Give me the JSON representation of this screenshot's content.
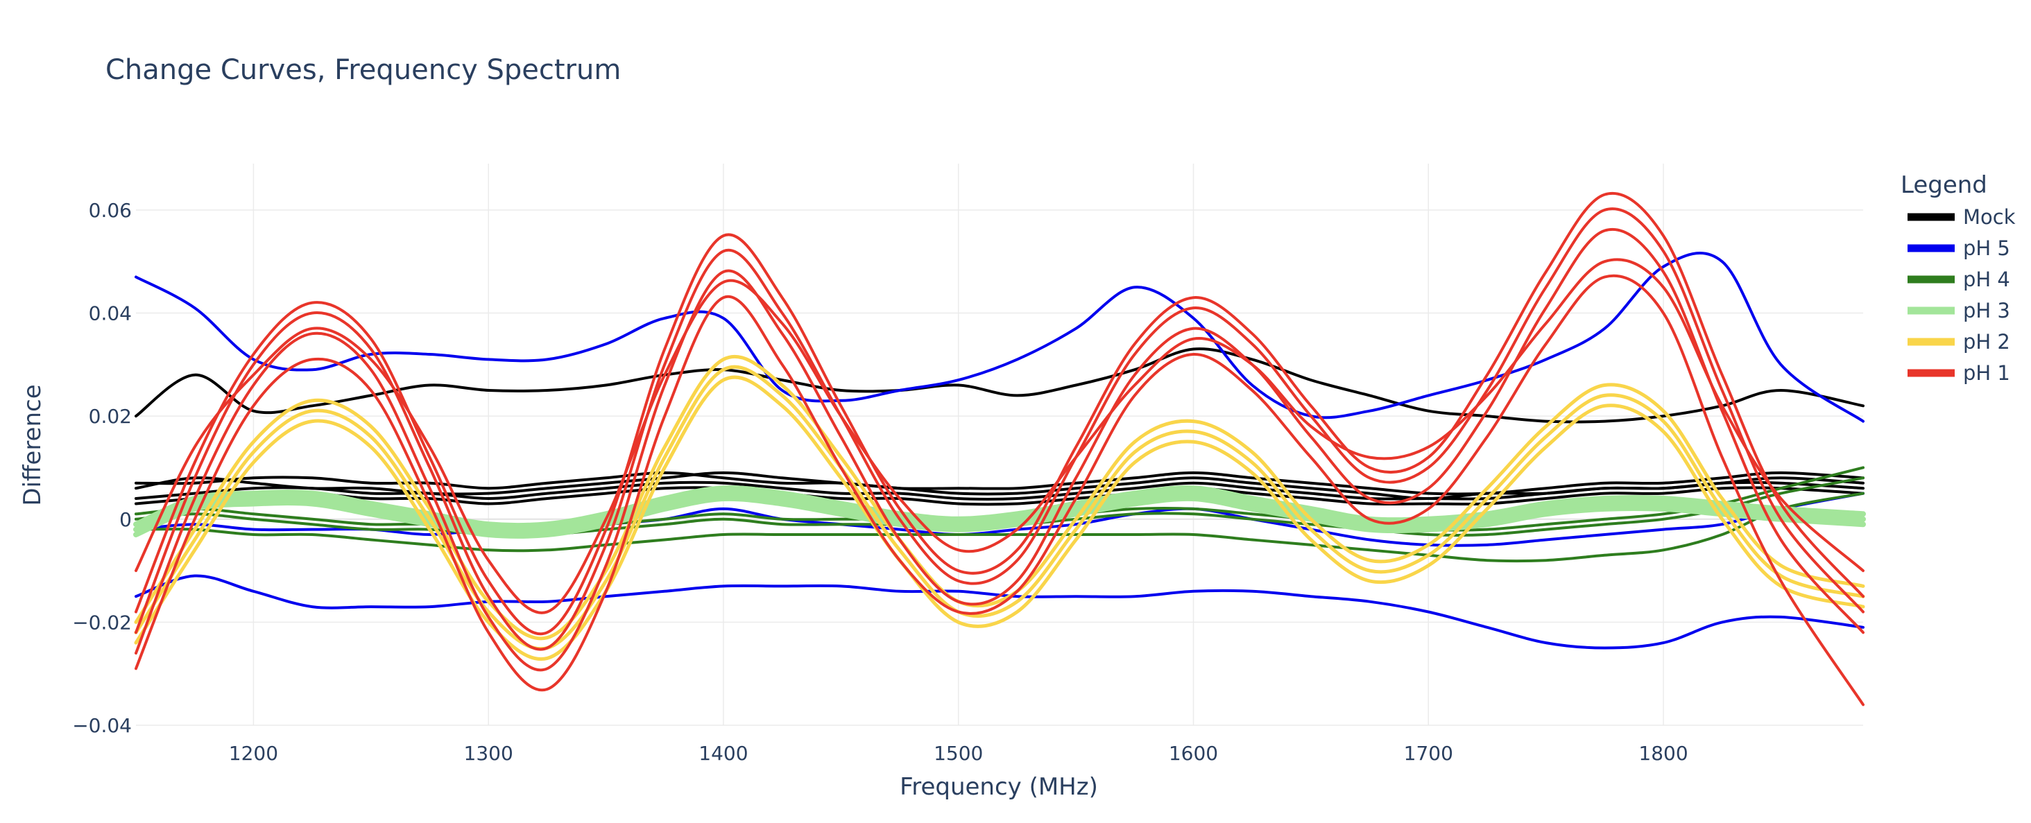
{
  "chart_data": {
    "type": "line",
    "title": "Change Curves, Frequency Spectrum",
    "xlabel": "Frequency (MHz)",
    "ylabel": "Difference",
    "xlim": [
      1150,
      1885
    ],
    "ylim": [
      -0.04,
      0.07
    ],
    "x_ticks": [
      1200,
      1300,
      1400,
      1500,
      1600,
      1700,
      1800
    ],
    "x_tick_labels": [
      "1200",
      "1300",
      "1400",
      "1500",
      "1600",
      "1700",
      "1800"
    ],
    "y_ticks": [
      -0.04,
      -0.02,
      0,
      0.02,
      0.04,
      0.06
    ],
    "y_tick_labels": [
      "−0.04",
      "−0.02",
      "0",
      "0.02",
      "0.04",
      "0.06"
    ],
    "grid": true,
    "legend": {
      "title": "Legend",
      "position": "right",
      "entries": [
        {
          "label": "Mock",
          "color": "#000000"
        },
        {
          "label": "pH 5",
          "color": "#0000ee"
        },
        {
          "label": "pH 4",
          "color": "#2e7d1e"
        },
        {
          "label": "pH 3",
          "color": "#a3e59a"
        },
        {
          "label": "pH 2",
          "color": "#f9d54a"
        },
        {
          "label": "pH 1",
          "color": "#e8352a"
        }
      ]
    },
    "x": [
      1150,
      1175,
      1200,
      1225,
      1250,
      1275,
      1300,
      1325,
      1350,
      1375,
      1400,
      1425,
      1450,
      1475,
      1500,
      1525,
      1550,
      1575,
      1600,
      1625,
      1650,
      1675,
      1700,
      1725,
      1750,
      1775,
      1800,
      1825,
      1850,
      1885
    ],
    "series": [
      {
        "name": "Mock",
        "group": "Mock",
        "values": [
          0.02,
          0.028,
          0.021,
          0.022,
          0.024,
          0.026,
          0.025,
          0.025,
          0.026,
          0.028,
          0.029,
          0.027,
          0.025,
          0.025,
          0.026,
          0.024,
          0.026,
          0.029,
          0.033,
          0.031,
          0.027,
          0.024,
          0.021,
          0.02,
          0.019,
          0.019,
          0.02,
          0.022,
          0.025,
          0.022
        ]
      },
      {
        "name": "Mock",
        "group": "Mock",
        "values": [
          0.007,
          0.007,
          0.008,
          0.008,
          0.007,
          0.007,
          0.006,
          0.007,
          0.008,
          0.009,
          0.008,
          0.007,
          0.007,
          0.006,
          0.006,
          0.006,
          0.007,
          0.008,
          0.009,
          0.008,
          0.007,
          0.006,
          0.005,
          0.005,
          0.006,
          0.007,
          0.007,
          0.008,
          0.009,
          0.008
        ]
      },
      {
        "name": "Mock",
        "group": "Mock",
        "values": [
          0.006,
          0.008,
          0.007,
          0.006,
          0.006,
          0.005,
          0.005,
          0.006,
          0.007,
          0.008,
          0.009,
          0.008,
          0.007,
          0.006,
          0.005,
          0.005,
          0.006,
          0.007,
          0.008,
          0.007,
          0.006,
          0.005,
          0.004,
          0.005,
          0.005,
          0.006,
          0.006,
          0.007,
          0.008,
          0.007
        ]
      },
      {
        "name": "Mock",
        "group": "Mock",
        "values": [
          0.003,
          0.004,
          0.005,
          0.005,
          0.004,
          0.004,
          0.003,
          0.004,
          0.005,
          0.006,
          0.006,
          0.005,
          0.004,
          0.004,
          0.003,
          0.003,
          0.004,
          0.005,
          0.006,
          0.005,
          0.004,
          0.003,
          0.003,
          0.003,
          0.004,
          0.005,
          0.005,
          0.006,
          0.006,
          0.005
        ]
      },
      {
        "name": "Mock",
        "group": "Mock",
        "values": [
          0.004,
          0.005,
          0.006,
          0.006,
          0.005,
          0.005,
          0.004,
          0.005,
          0.006,
          0.007,
          0.007,
          0.006,
          0.005,
          0.005,
          0.004,
          0.004,
          0.005,
          0.006,
          0.007,
          0.006,
          0.005,
          0.004,
          0.004,
          0.004,
          0.005,
          0.006,
          0.006,
          0.007,
          0.007,
          0.006
        ]
      },
      {
        "name": "pH 5",
        "group": "pH 5",
        "values": [
          0.047,
          0.041,
          0.031,
          0.029,
          0.032,
          0.032,
          0.031,
          0.031,
          0.034,
          0.039,
          0.039,
          0.025,
          0.023,
          0.025,
          0.027,
          0.031,
          0.037,
          0.045,
          0.039,
          0.026,
          0.02,
          0.021,
          0.024,
          0.027,
          0.031,
          0.037,
          0.049,
          0.05,
          0.03,
          0.019
        ]
      },
      {
        "name": "pH 5",
        "group": "pH 5",
        "values": [
          -0.015,
          -0.011,
          -0.014,
          -0.017,
          -0.017,
          -0.017,
          -0.016,
          -0.016,
          -0.015,
          -0.014,
          -0.013,
          -0.013,
          -0.013,
          -0.014,
          -0.014,
          -0.015,
          -0.015,
          -0.015,
          -0.014,
          -0.014,
          -0.015,
          -0.016,
          -0.018,
          -0.021,
          -0.024,
          -0.025,
          -0.024,
          -0.02,
          -0.019,
          -0.021
        ]
      },
      {
        "name": "pH 5",
        "group": "pH 5",
        "values": [
          -0.002,
          -0.001,
          -0.002,
          -0.002,
          -0.002,
          -0.003,
          -0.002,
          -0.002,
          -0.001,
          0.0,
          0.002,
          0.0,
          -0.001,
          -0.002,
          -0.003,
          -0.002,
          -0.001,
          0.001,
          0.002,
          0.0,
          -0.002,
          -0.004,
          -0.005,
          -0.005,
          -0.004,
          -0.003,
          -0.002,
          -0.001,
          0.002,
          0.005
        ]
      },
      {
        "name": "pH 4",
        "group": "pH 4",
        "values": [
          -0.002,
          -0.002,
          -0.003,
          -0.003,
          -0.004,
          -0.005,
          -0.006,
          -0.006,
          -0.005,
          -0.004,
          -0.003,
          -0.003,
          -0.003,
          -0.003,
          -0.003,
          -0.003,
          -0.003,
          -0.003,
          -0.003,
          -0.004,
          -0.005,
          -0.006,
          -0.007,
          -0.008,
          -0.008,
          -0.007,
          -0.006,
          -0.003,
          0.002,
          0.005
        ]
      },
      {
        "name": "pH 4",
        "group": "pH 4",
        "values": [
          0.0,
          0.001,
          0.0,
          -0.001,
          -0.002,
          -0.002,
          -0.003,
          -0.003,
          -0.002,
          -0.001,
          0.0,
          -0.001,
          -0.001,
          -0.001,
          -0.001,
          -0.001,
          0.0,
          0.001,
          0.001,
          0.0,
          -0.001,
          -0.002,
          -0.003,
          -0.003,
          -0.002,
          -0.001,
          0.0,
          0.002,
          0.005,
          0.008
        ]
      },
      {
        "name": "pH 4",
        "group": "pH 4",
        "values": [
          0.001,
          0.002,
          0.001,
          0.0,
          -0.001,
          -0.001,
          -0.002,
          -0.002,
          -0.001,
          0.0,
          0.001,
          0.0,
          0.0,
          0.0,
          0.0,
          0.0,
          0.001,
          0.002,
          0.002,
          0.001,
          0.0,
          -0.001,
          -0.002,
          -0.002,
          -0.001,
          0.0,
          0.001,
          0.003,
          0.006,
          0.01
        ]
      },
      {
        "name": "pH 3",
        "group": "pH 3",
        "values": [
          -0.003,
          0.002,
          0.003,
          0.003,
          0.001,
          -0.001,
          -0.003,
          -0.003,
          -0.001,
          0.002,
          0.004,
          0.003,
          0.001,
          -0.001,
          -0.002,
          -0.001,
          0.001,
          0.003,
          0.004,
          0.002,
          0.0,
          -0.002,
          -0.002,
          -0.001,
          0.001,
          0.002,
          0.002,
          0.001,
          0.0,
          -0.001
        ]
      },
      {
        "name": "pH 3",
        "group": "pH 3",
        "values": [
          -0.001,
          0.004,
          0.005,
          0.005,
          0.003,
          0.001,
          -0.001,
          -0.001,
          0.001,
          0.004,
          0.006,
          0.005,
          0.003,
          0.001,
          0.0,
          0.001,
          0.003,
          0.005,
          0.006,
          0.004,
          0.002,
          0.0,
          0.0,
          0.001,
          0.003,
          0.004,
          0.004,
          0.003,
          0.002,
          0.001
        ]
      },
      {
        "name": "pH 3",
        "group": "pH 3",
        "values": [
          -0.002,
          0.003,
          0.004,
          0.004,
          0.002,
          0.0,
          -0.002,
          -0.002,
          0.0,
          0.003,
          0.005,
          0.004,
          0.002,
          0.0,
          -0.001,
          0.0,
          0.002,
          0.004,
          0.005,
          0.003,
          0.001,
          -0.001,
          -0.001,
          0.0,
          0.002,
          0.003,
          0.003,
          0.002,
          0.001,
          0.0
        ]
      },
      {
        "name": "pH 2",
        "group": "pH 2",
        "values": [
          -0.022,
          -0.004,
          0.013,
          0.021,
          0.016,
          0.0,
          -0.018,
          -0.025,
          -0.012,
          0.012,
          0.029,
          0.024,
          0.01,
          -0.006,
          -0.018,
          -0.016,
          -0.002,
          0.013,
          0.017,
          0.011,
          -0.002,
          -0.01,
          -0.007,
          0.004,
          0.016,
          0.024,
          0.019,
          0.002,
          -0.011,
          -0.015
        ]
      },
      {
        "name": "pH 2",
        "group": "pH 2",
        "values": [
          -0.02,
          -0.002,
          0.015,
          0.023,
          0.018,
          0.002,
          -0.016,
          -0.023,
          -0.01,
          0.014,
          0.031,
          0.026,
          0.012,
          -0.004,
          -0.016,
          -0.014,
          0.0,
          0.015,
          0.019,
          0.013,
          0.0,
          -0.008,
          -0.005,
          0.006,
          0.018,
          0.026,
          0.021,
          0.004,
          -0.009,
          -0.013
        ]
      },
      {
        "name": "pH 2",
        "group": "pH 2",
        "values": [
          -0.024,
          -0.006,
          0.011,
          0.019,
          0.014,
          -0.002,
          -0.02,
          -0.027,
          -0.014,
          0.01,
          0.027,
          0.022,
          0.008,
          -0.008,
          -0.02,
          -0.018,
          -0.004,
          0.011,
          0.015,
          0.009,
          -0.004,
          -0.012,
          -0.009,
          0.002,
          0.014,
          0.022,
          0.017,
          0.0,
          -0.013,
          -0.017
        ]
      },
      {
        "name": "pH 1",
        "group": "pH 1",
        "values": [
          -0.022,
          0.008,
          0.03,
          0.04,
          0.033,
          0.01,
          -0.015,
          -0.025,
          -0.005,
          0.03,
          0.052,
          0.04,
          0.02,
          0.0,
          -0.012,
          -0.008,
          0.012,
          0.032,
          0.041,
          0.034,
          0.02,
          0.008,
          0.01,
          0.025,
          0.045,
          0.06,
          0.052,
          0.025,
          0.0,
          -0.018
        ]
      },
      {
        "name": "pH 1",
        "group": "pH 1",
        "values": [
          -0.018,
          0.011,
          0.032,
          0.042,
          0.035,
          0.012,
          -0.012,
          -0.022,
          -0.002,
          0.033,
          0.055,
          0.043,
          0.022,
          0.002,
          -0.01,
          -0.006,
          0.014,
          0.034,
          0.043,
          0.036,
          0.022,
          0.01,
          0.012,
          0.028,
          0.048,
          0.063,
          0.055,
          0.028,
          0.003,
          -0.015
        ]
      },
      {
        "name": "pH 1",
        "group": "pH 1",
        "values": [
          -0.026,
          0.004,
          0.026,
          0.036,
          0.029,
          0.006,
          -0.019,
          -0.029,
          -0.009,
          0.026,
          0.048,
          0.036,
          0.016,
          -0.004,
          -0.016,
          -0.012,
          0.008,
          0.028,
          0.037,
          0.03,
          0.016,
          0.004,
          0.006,
          0.021,
          0.041,
          0.056,
          0.048,
          0.021,
          -0.004,
          -0.022
        ]
      },
      {
        "name": "pH 1",
        "group": "pH 1",
        "values": [
          -0.029,
          0.0,
          0.022,
          0.031,
          0.025,
          0.003,
          -0.022,
          -0.033,
          -0.014,
          0.02,
          0.043,
          0.03,
          0.01,
          -0.008,
          -0.018,
          -0.014,
          0.004,
          0.024,
          0.032,
          0.025,
          0.012,
          0.0,
          0.002,
          0.016,
          0.034,
          0.047,
          0.04,
          0.012,
          -0.012,
          -0.036
        ]
      },
      {
        "name": "pH 1",
        "group": "pH 1",
        "values": [
          -0.01,
          0.014,
          0.028,
          0.037,
          0.031,
          0.014,
          -0.008,
          -0.018,
          0.0,
          0.028,
          0.046,
          0.038,
          0.02,
          0.004,
          -0.006,
          -0.002,
          0.012,
          0.026,
          0.035,
          0.03,
          0.018,
          0.012,
          0.014,
          0.024,
          0.038,
          0.05,
          0.045,
          0.022,
          0.004,
          -0.01
        ]
      }
    ]
  }
}
